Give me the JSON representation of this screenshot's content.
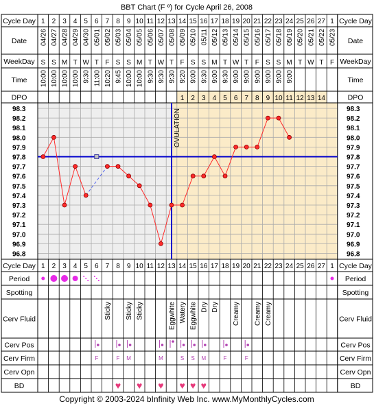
{
  "title": "BBT Chart (F º) for Cycle April 26, 2008",
  "copyright": "Copyright © 2003-2024 bInfinity Web Inc.     www.MyMonthlyCycles.com",
  "row_labels": {
    "cycle_day": "Cycle Day",
    "date": "Date",
    "weekday": "WeekDay",
    "time": "Time",
    "dpo": "DPO",
    "period": "Period",
    "spotting": "Spotting",
    "cerv_fluid": "Cerv Fluid",
    "cerv_pos": "Cerv Pos",
    "cerv_firm": "Cerv Firm",
    "cerv_opn": "Cerv Opn",
    "bd": "BD"
  },
  "ovulation_label": "OVULATION",
  "colors": {
    "grid_bg_pre": "#eeeeee",
    "grid_bg_post": "#fbebc8",
    "temp_line": "#ff2a2a",
    "coverline": "#0000cc",
    "period_dot": "#e629e6",
    "bd_heart": "#e6397a",
    "cervix_mark": "#b040b0"
  },
  "columns": [
    {
      "cd": "1",
      "date": "04/26",
      "wd": "S",
      "time": "10:00",
      "dpo": ""
    },
    {
      "cd": "2",
      "date": "04/27",
      "wd": "S",
      "time": "10:00",
      "dpo": ""
    },
    {
      "cd": "3",
      "date": "04/28",
      "wd": "M",
      "time": "10:00",
      "dpo": ""
    },
    {
      "cd": "4",
      "date": "04/29",
      "wd": "T",
      "time": "10:00",
      "dpo": ""
    },
    {
      "cd": "5",
      "date": "04/30",
      "wd": "W",
      "time": "9:30",
      "dpo": ""
    },
    {
      "cd": "6",
      "date": "05/01",
      "wd": "T",
      "time": "11:00",
      "dpo": ""
    },
    {
      "cd": "7",
      "date": "05/02",
      "wd": "F",
      "time": "10:20",
      "dpo": ""
    },
    {
      "cd": "8",
      "date": "05/03",
      "wd": "S",
      "time": "9:45",
      "dpo": ""
    },
    {
      "cd": "9",
      "date": "05/04",
      "wd": "S",
      "time": "10:00",
      "dpo": ""
    },
    {
      "cd": "10",
      "date": "05/05",
      "wd": "M",
      "time": "10:00",
      "dpo": ""
    },
    {
      "cd": "11",
      "date": "05/06",
      "wd": "T",
      "time": "9:30",
      "dpo": ""
    },
    {
      "cd": "12",
      "date": "05/07",
      "wd": "W",
      "time": "9:30",
      "dpo": ""
    },
    {
      "cd": "13",
      "date": "05/08",
      "wd": "T",
      "time": "9:30",
      "dpo": ""
    },
    {
      "cd": "14",
      "date": "05/09",
      "wd": "F",
      "time": "9:20",
      "dpo": "1"
    },
    {
      "cd": "15",
      "date": "05/10",
      "wd": "S",
      "time": "9:00",
      "dpo": "2"
    },
    {
      "cd": "16",
      "date": "05/11",
      "wd": "S",
      "time": "9:30",
      "dpo": "3"
    },
    {
      "cd": "17",
      "date": "05/12",
      "wd": "M",
      "time": "9:00",
      "dpo": "4"
    },
    {
      "cd": "18",
      "date": "05/13",
      "wd": "T",
      "time": "9:30",
      "dpo": "5"
    },
    {
      "cd": "19",
      "date": "05/14",
      "wd": "W",
      "time": "9:00",
      "dpo": "6"
    },
    {
      "cd": "20",
      "date": "05/15",
      "wd": "T",
      "time": "9:00",
      "dpo": "7"
    },
    {
      "cd": "21",
      "date": "05/16",
      "wd": "F",
      "time": "9:00",
      "dpo": "8"
    },
    {
      "cd": "22",
      "date": "05/17",
      "wd": "S",
      "time": "9:00",
      "dpo": "9"
    },
    {
      "cd": "23",
      "date": "05/18",
      "wd": "S",
      "time": "9:00",
      "dpo": "10"
    },
    {
      "cd": "24",
      "date": "05/19",
      "wd": "M",
      "time": "9:00",
      "dpo": "11"
    },
    {
      "cd": "25",
      "date": "05/20",
      "wd": "T",
      "time": "",
      "dpo": "12"
    },
    {
      "cd": "26",
      "date": "05/21",
      "wd": "W",
      "time": "",
      "dpo": "13"
    },
    {
      "cd": "27",
      "date": "05/22",
      "wd": "T",
      "time": "",
      "dpo": "14"
    },
    {
      "cd": "1",
      "date": "05/23",
      "wd": "F",
      "time": "",
      "dpo": ""
    }
  ],
  "chart_data": {
    "type": "line",
    "title": "BBT Chart (F º) for Cycle April 26, 2008",
    "x_label": "Cycle Day",
    "y_ticks": [
      "98.3",
      "98.2",
      "98.1",
      "98.0",
      "97.9",
      "97.8",
      "97.7",
      "97.6",
      "97.5",
      "97.4",
      "97.3",
      "97.2",
      "97.1",
      "97.0",
      "96.9",
      "96.8"
    ],
    "ylim": [
      96.8,
      98.3
    ],
    "coverline": 97.8,
    "ovulation_day": 13,
    "series": [
      {
        "values": [
          97.8,
          98.0,
          97.3,
          97.7,
          97.4,
          null,
          97.7,
          97.7,
          97.6,
          97.5,
          97.3,
          96.9,
          97.3,
          97.3,
          97.6,
          97.6,
          97.8,
          97.6,
          97.9,
          97.9,
          97.9,
          98.2,
          98.2,
          98.0,
          null,
          null,
          null,
          null
        ],
        "discarded": [
          {
            "day": 6,
            "value": 97.8
          }
        ]
      }
    ],
    "period": [
      "light",
      "heavy",
      "heavy",
      "medium",
      "spotting",
      "spotting",
      "",
      "",
      "",
      "",
      "",
      "",
      "",
      "",
      "",
      "",
      "",
      "",
      "",
      "",
      "",
      "",
      "",
      "",
      "",
      "",
      "",
      "light"
    ],
    "cerv_fluid": [
      "",
      "",
      "",
      "",
      "",
      "",
      "Sticky",
      "",
      "Sticky",
      "Sticky",
      "",
      "",
      "Eggwhite",
      "Watery",
      "Eggwhite",
      "Dry",
      "Dry",
      "",
      "Creamy",
      "",
      "Creamy",
      "Creamy",
      "",
      "",
      "",
      "",
      "",
      ""
    ],
    "cerv_pos": [
      "",
      "",
      "",
      "",
      "",
      "low",
      "",
      "low",
      "low",
      "",
      "",
      "low",
      "high",
      "low",
      "low",
      "low",
      "",
      "low",
      "",
      "low",
      "",
      "",
      "",
      "",
      "",
      "",
      "",
      ""
    ],
    "cerv_firm": [
      "",
      "",
      "",
      "",
      "",
      "F",
      "",
      "F",
      "M",
      "",
      "",
      "M",
      "",
      "S",
      "S",
      "M",
      "",
      "F",
      "",
      "F",
      "",
      "",
      "",
      "",
      "",
      "",
      "",
      ""
    ],
    "bd": [
      false,
      false,
      false,
      false,
      false,
      false,
      false,
      true,
      false,
      true,
      false,
      true,
      false,
      true,
      true,
      true,
      false,
      false,
      false,
      false,
      false,
      false,
      false,
      false,
      false,
      false,
      false,
      false
    ]
  }
}
